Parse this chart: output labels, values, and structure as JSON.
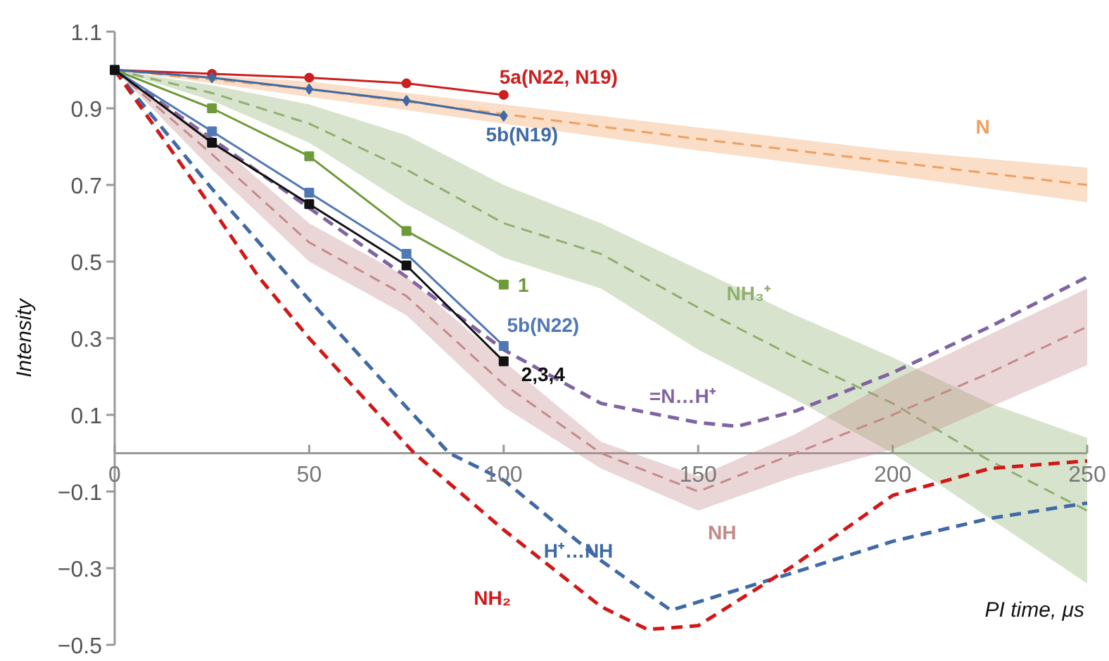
{
  "chart_data": {
    "type": "line",
    "ylabel": "Intensity",
    "xlabel": "PI time, μs",
    "xlim": [
      0,
      250
    ],
    "ylim": [
      -0.5,
      1.1
    ],
    "xticks": [
      0,
      50,
      100,
      150,
      200,
      250
    ],
    "yticks": [
      -0.5,
      -0.3,
      -0.1,
      0.1,
      0.3,
      0.5,
      0.7,
      0.9,
      1.1
    ],
    "grid": false,
    "legend": false,
    "series": [
      {
        "name": "5a(N22, N19)",
        "color": "#cc1f1f",
        "marker": "circle",
        "line_style": "solid",
        "x": [
          0,
          25,
          50,
          75,
          100
        ],
        "values": [
          1.0,
          0.99,
          0.98,
          0.965,
          0.935
        ]
      },
      {
        "name": "5b(N19)",
        "color": "#3f6aa6",
        "marker": "diamond",
        "line_style": "solid",
        "x": [
          0,
          25,
          50,
          75,
          100
        ],
        "values": [
          1.0,
          0.98,
          0.95,
          0.92,
          0.88
        ]
      },
      {
        "name": "1",
        "color": "#6f9a3a",
        "marker": "square",
        "line_style": "solid",
        "x": [
          0,
          25,
          50,
          75,
          100
        ],
        "values": [
          1.0,
          0.9,
          0.775,
          0.58,
          0.44
        ]
      },
      {
        "name": "5b(N22)",
        "color": "#5078b4",
        "marker": "square",
        "line_style": "solid",
        "x": [
          0,
          25,
          50,
          75,
          100
        ],
        "values": [
          1.0,
          0.84,
          0.68,
          0.52,
          0.28
        ]
      },
      {
        "name": "2,3,4",
        "color": "#111111",
        "marker": "square",
        "line_style": "solid",
        "x": [
          0,
          25,
          50,
          75,
          100
        ],
        "values": [
          1.0,
          0.81,
          0.65,
          0.49,
          0.24
        ]
      },
      {
        "name": "N",
        "color": "#f0a060",
        "line_style": "dashed",
        "x": [
          0,
          50,
          100,
          150,
          200,
          250
        ],
        "values": [
          1.0,
          0.95,
          0.885,
          0.82,
          0.76,
          0.7
        ],
        "lower": [
          1.0,
          0.93,
          0.86,
          0.79,
          0.725,
          0.655
        ],
        "upper": [
          1.0,
          0.97,
          0.91,
          0.85,
          0.79,
          0.745
        ]
      },
      {
        "name": "NH₃⁺",
        "color": "#8fb070",
        "line_style": "dashed",
        "x": [
          0,
          25,
          50,
          75,
          100,
          125,
          150,
          175,
          200,
          225,
          250
        ],
        "values": [
          1.0,
          0.94,
          0.86,
          0.74,
          0.6,
          0.52,
          0.38,
          0.25,
          0.13,
          -0.02,
          -0.15
        ],
        "lower": [
          1.0,
          0.92,
          0.81,
          0.65,
          0.51,
          0.43,
          0.27,
          0.14,
          0.0,
          -0.17,
          -0.34
        ],
        "upper": [
          1.0,
          0.96,
          0.91,
          0.83,
          0.7,
          0.6,
          0.48,
          0.36,
          0.25,
          0.13,
          0.04
        ]
      },
      {
        "name": "=N…H⁺",
        "color": "#8064a2",
        "line_style": "dashed",
        "x": [
          0,
          25,
          50,
          75,
          100,
          125,
          150,
          160,
          175,
          200,
          225,
          250
        ],
        "values": [
          1.0,
          0.82,
          0.64,
          0.46,
          0.27,
          0.13,
          0.08,
          0.07,
          0.11,
          0.21,
          0.33,
          0.46
        ]
      },
      {
        "name": "NH",
        "color": "#c48a8a",
        "line_style": "dashed",
        "x": [
          0,
          25,
          50,
          75,
          100,
          125,
          150,
          175,
          200,
          225,
          250
        ],
        "values": [
          1.0,
          0.78,
          0.55,
          0.41,
          0.18,
          0.0,
          -0.1,
          0.0,
          0.1,
          0.21,
          0.33
        ],
        "lower": [
          1.0,
          0.74,
          0.5,
          0.36,
          0.12,
          -0.04,
          -0.15,
          -0.06,
          0.01,
          0.12,
          0.23
        ],
        "upper": [
          1.0,
          0.82,
          0.6,
          0.46,
          0.24,
          0.03,
          -0.06,
          0.05,
          0.19,
          0.31,
          0.43
        ]
      },
      {
        "name": "H⁺…NH",
        "color": "#3f6aa6",
        "line_style": "dashed",
        "x": [
          0,
          25,
          50,
          75,
          86,
          100,
          125,
          143,
          175,
          200,
          225,
          250
        ],
        "values": [
          1.0,
          0.69,
          0.4,
          0.12,
          0.0,
          -0.07,
          -0.28,
          -0.41,
          -0.31,
          -0.23,
          -0.17,
          -0.13
        ]
      },
      {
        "name": "NH₂",
        "color": "#d01818",
        "line_style": "dashed",
        "x": [
          0,
          25,
          37,
          50,
          77,
          100,
          125,
          137,
          150,
          175,
          200,
          225,
          250
        ],
        "values": [
          1.0,
          0.64,
          0.46,
          0.3,
          0.0,
          -0.2,
          -0.4,
          -0.46,
          -0.45,
          -0.29,
          -0.11,
          -0.04,
          -0.02
        ]
      }
    ]
  }
}
